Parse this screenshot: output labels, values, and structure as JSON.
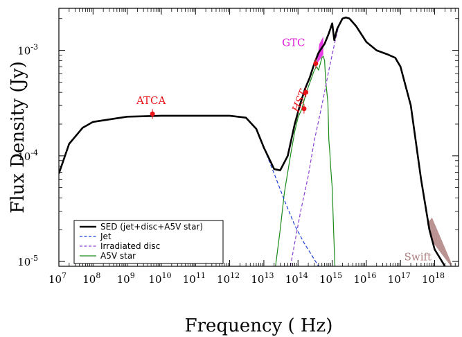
{
  "chart_data": {
    "type": "line",
    "title": "",
    "xlabel": "Frequency ( Hz)",
    "ylabel": "Flux Density (Jy)",
    "xscale": "log",
    "yscale": "log",
    "xlim": [
      10000000.0,
      5e+18
    ],
    "ylim": [
      9e-06,
      0.0025
    ],
    "x_tick_labels": [
      {
        "exp": "7",
        "v": 10000000.0
      },
      {
        "exp": "8",
        "v": 100000000.0
      },
      {
        "exp": "9",
        "v": 1000000000.0
      },
      {
        "exp": "10",
        "v": 10000000000.0
      },
      {
        "exp": "11",
        "v": 100000000000.0
      },
      {
        "exp": "12",
        "v": 1000000000000.0
      },
      {
        "exp": "13",
        "v": 10000000000000.0
      },
      {
        "exp": "14",
        "v": 100000000000000.0
      },
      {
        "exp": "15",
        "v": 1000000000000000.0
      },
      {
        "exp": "16",
        "v": 1e+16
      },
      {
        "exp": "17",
        "v": 1e+17
      },
      {
        "exp": "18",
        "v": 1e+18
      }
    ],
    "y_tick_labels": [
      {
        "exp": "-5",
        "v": 1e-05
      },
      {
        "exp": "-4",
        "v": 0.0001
      },
      {
        "exp": "-3",
        "v": 0.001
      }
    ],
    "tick_base": "10",
    "grid": false,
    "legend_position": "bottom-left",
    "series": [
      {
        "name": "SED (jet+disc+A5V star)",
        "color": "#000000",
        "style": "solid",
        "points": [
          [
            10000000.0,
            6.8e-05
          ],
          [
            20000000.0,
            0.00013
          ],
          [
            50000000.0,
            0.000185
          ],
          [
            100000000.0,
            0.00021
          ],
          [
            1000000000.0,
            0.000235
          ],
          [
            10000000000.0,
            0.00024
          ],
          [
            100000000000.0,
            0.00024
          ],
          [
            1000000000000.0,
            0.00024
          ],
          [
            3000000000000.0,
            0.00023
          ],
          [
            6000000000000.0,
            0.00018
          ],
          [
            10000000000000.0,
            0.00012
          ],
          [
            20000000000000.0,
            7.5e-05
          ],
          [
            30000000000000.0,
            7.3e-05
          ],
          [
            50000000000000.0,
            0.0001
          ],
          [
            80000000000000.0,
            0.0002
          ],
          [
            120000000000000.0,
            0.00032
          ],
          [
            160000000000000.0,
            0.00043
          ],
          [
            220000000000000.0,
            0.00055
          ],
          [
            300000000000000.0,
            0.00075
          ],
          [
            400000000000000.0,
            0.00095
          ],
          [
            600000000000000.0,
            0.00115
          ],
          [
            800000000000000.0,
            0.00145
          ],
          [
            1000000000000000.0,
            0.0018
          ],
          [
            1150000000000000.0,
            0.00125
          ],
          [
            1400000000000000.0,
            0.0016
          ],
          [
            2000000000000000.0,
            0.002
          ],
          [
            2500000000000000.0,
            0.00205
          ],
          [
            3200000000000000.0,
            0.002
          ],
          [
            5000000000000000.0,
            0.0017
          ],
          [
            1e+16,
            0.0012
          ],
          [
            2e+16,
            0.001
          ],
          [
            4e+16,
            0.00092
          ],
          [
            7e+16,
            0.00085
          ],
          [
            1e+17,
            0.0007
          ],
          [
            2e+17,
            0.0003
          ],
          [
            4e+17,
            6e-05
          ],
          [
            7e+17,
            2e-05
          ],
          [
            1e+18,
            1.3e-05
          ],
          [
            2e+18,
            9e-06
          ]
        ]
      },
      {
        "name": "Jet",
        "color": "#1f3fd8",
        "style": "dashed",
        "points": [
          [
            10000000.0,
            6.8e-05
          ],
          [
            20000000.0,
            0.00013
          ],
          [
            50000000.0,
            0.000185
          ],
          [
            100000000.0,
            0.00021
          ],
          [
            1000000000.0,
            0.000235
          ],
          [
            10000000000.0,
            0.00024
          ],
          [
            100000000000.0,
            0.00024
          ],
          [
            1000000000000.0,
            0.00024
          ],
          [
            3000000000000.0,
            0.00023
          ],
          [
            6000000000000.0,
            0.00018
          ],
          [
            10000000000000.0,
            0.00012
          ],
          [
            20000000000000.0,
            6.8e-05
          ],
          [
            40000000000000.0,
            3.8e-05
          ],
          [
            80000000000000.0,
            2.2e-05
          ],
          [
            150000000000000.0,
            1.5e-05
          ],
          [
            250000000000000.0,
            1.15e-05
          ],
          [
            400000000000000.0,
            9e-06
          ]
        ]
      },
      {
        "name": "Irradiated disc",
        "color": "#8a3fd0",
        "style": "dashed",
        "points": [
          [
            60000000000000.0,
            9e-06
          ],
          [
            80000000000000.0,
            1.5e-05
          ],
          [
            120000000000000.0,
            3e-05
          ],
          [
            200000000000000.0,
            6.5e-05
          ],
          [
            300000000000000.0,
            0.00014
          ],
          [
            500000000000000.0,
            0.0003
          ],
          [
            800000000000000.0,
            0.00065
          ],
          [
            1200000000000000.0,
            0.0012
          ],
          [
            1600000000000000.0,
            0.00175
          ],
          [
            2000000000000000.0,
            0.002
          ],
          [
            2500000000000000.0,
            0.00205
          ],
          [
            3200000000000000.0,
            0.002
          ],
          [
            5000000000000000.0,
            0.0017
          ],
          [
            1e+16,
            0.0012
          ],
          [
            2e+16,
            0.001
          ],
          [
            4e+16,
            0.00092
          ],
          [
            7e+16,
            0.00085
          ],
          [
            1e+17,
            0.0007
          ],
          [
            2e+17,
            0.0003
          ],
          [
            4e+17,
            6e-05
          ],
          [
            7e+17,
            2e-05
          ],
          [
            1e+18,
            1.3e-05
          ],
          [
            2e+18,
            9e-06
          ]
        ]
      },
      {
        "name": "A5V star",
        "color": "#1a8a1a",
        "style": "solid",
        "points": [
          [
            22000000000000.0,
            9e-06
          ],
          [
            30000000000000.0,
            2e-05
          ],
          [
            40000000000000.0,
            4.5e-05
          ],
          [
            60000000000000.0,
            0.0001
          ],
          [
            80000000000000.0,
            0.00017
          ],
          [
            100000000000000.0,
            0.00023
          ],
          [
            130000000000000.0,
            0.00028
          ],
          [
            160000000000000.0,
            0.00036
          ],
          [
            200000000000000.0,
            0.00045
          ],
          [
            250000000000000.0,
            0.00055
          ],
          [
            300000000000000.0,
            0.00065
          ],
          [
            350000000000000.0,
            0.0007
          ],
          [
            400000000000000.0,
            0.00065
          ],
          [
            450000000000000.0,
            0.00075
          ],
          [
            500000000000000.0,
            0.00085
          ],
          [
            550000000000000.0,
            0.00088
          ],
          [
            600000000000000.0,
            0.0008
          ],
          [
            650000000000000.0,
            0.0005
          ],
          [
            700000000000000.0,
            0.0004
          ],
          [
            750000000000000.0,
            0.00032
          ],
          [
            800000000000000.0,
            0.00014
          ],
          [
            850000000000000.0,
            0.00011
          ],
          [
            900000000000000.0,
            8e-05
          ],
          [
            1000000000000000.0,
            5e-05
          ],
          [
            1100000000000000.0,
            2e-05
          ],
          [
            1200000000000000.0,
            9e-06
          ]
        ]
      }
    ],
    "data_points": [
      {
        "label": "ATCA",
        "x": 5500000000.0,
        "y": 0.00025,
        "color": "#e8141a"
      },
      {
        "label": "HST",
        "x": 150000000000000.0,
        "y": 0.00028,
        "color": "#e8141a"
      },
      {
        "label": "",
        "x": 170000000000000.0,
        "y": 0.0004,
        "color": "#e8141a"
      },
      {
        "label": "",
        "x": 330000000000000.0,
        "y": 0.00075,
        "color": "#e8141a"
      }
    ],
    "annotations": [
      {
        "label": "GTC",
        "color": "#e21adc"
      },
      {
        "label": "Swift",
        "color": "#b08080"
      }
    ],
    "gtc_band": {
      "color": "#e21adc",
      "x": [
        350000000000000.0,
        550000000000000.0
      ],
      "y": [
        0.0007,
        0.00135
      ]
    },
    "swift_band": {
      "color": "#b08080",
      "x": [
        6e+17,
        3e+18
      ],
      "y": [
        9e-06,
        2e-05
      ]
    }
  }
}
